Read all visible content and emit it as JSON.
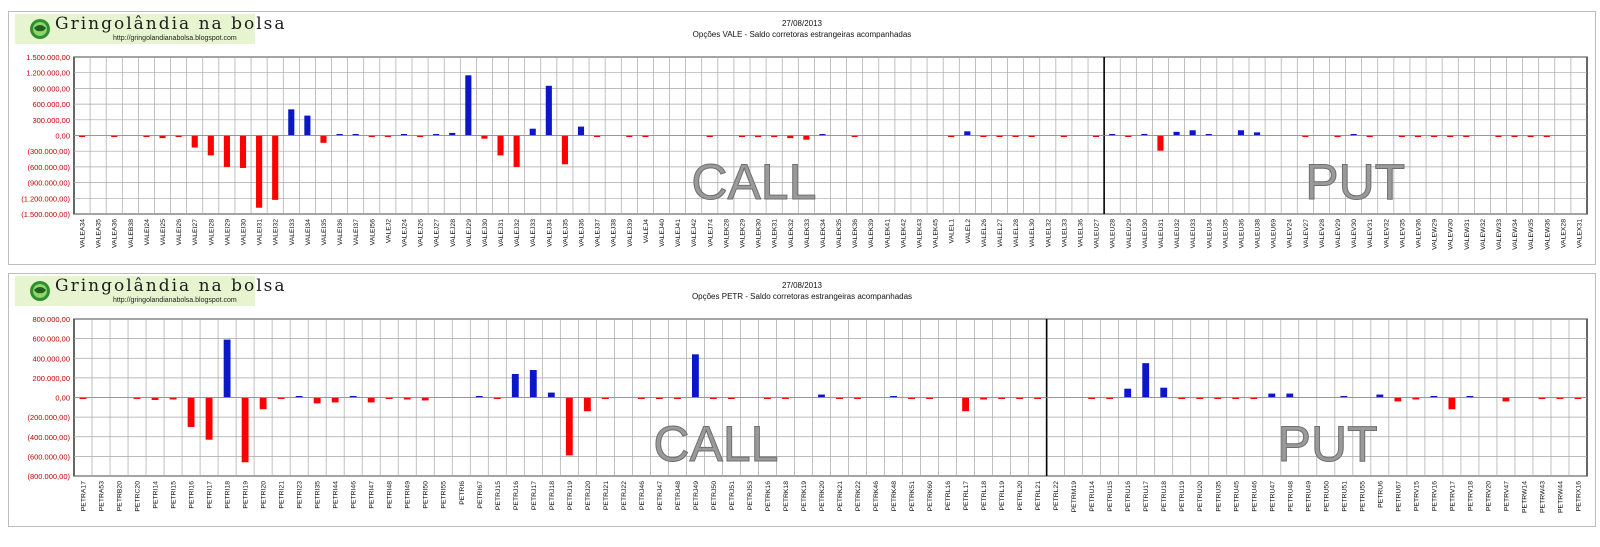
{
  "panels": [
    {
      "logo": {
        "name": "Gringolândia na bolsa",
        "url": "http://gringolandianabolsa.blogspot.com"
      },
      "date": "27/08/2013",
      "subtitle": "Opções VALE - Saldo corretoras estrangeiras acompanhadas",
      "watermark_call": "CALL",
      "watermark_put": "PUT"
    },
    {
      "logo": {
        "name": "Gringolândia na bolsa",
        "url": "http://gringolandianabolsa.blogspot.com"
      },
      "date": "27/08/2013",
      "subtitle": "Opções PETR - Saldo corretoras estrangeiras acompanhadas",
      "watermark_call": "CALL",
      "watermark_put": "PUT"
    }
  ],
  "colors": {
    "positive": "#0b17c9",
    "negative": "#ff0000",
    "axis_labels": "#c00000",
    "grid": "#a6a6a6"
  },
  "chart_data": [
    {
      "type": "bar",
      "title": "Opções VALE - Saldo corretoras estrangeiras acompanhadas",
      "ylim": [
        -1500000,
        1500000
      ],
      "yticks": [
        1500000,
        1200000,
        900000,
        600000,
        300000,
        0,
        -300000,
        -600000,
        -900000,
        -1200000,
        -1500000
      ],
      "ytick_labels": [
        "1.500.000,00",
        "1.200.000,00",
        "900.000,00",
        "600.000,00",
        "300.000,00",
        "0,00",
        "(300.000,00)",
        "(600.000,00)",
        "(900.000,00)",
        "(1.200.000,00)",
        "(1.500.000,00)"
      ],
      "grid": true,
      "divider_after_index": 64,
      "categories": [
        "VALEA34",
        "VALEA35",
        "VALEA36",
        "VALEB38",
        "VALEI24",
        "VALEI25",
        "VALEI26",
        "VALEI27",
        "VALEI28",
        "VALEI29",
        "VALEI30",
        "VALEI31",
        "VALEI32",
        "VALEI33",
        "VALEI34",
        "VALEI35",
        "VALEI36",
        "VALEI37",
        "VALEI56",
        "VALEJ2",
        "VALEJ24",
        "VALEJ26",
        "VALEJ27",
        "VALEJ28",
        "VALEJ29",
        "VALEJ30",
        "VALEJ31",
        "VALEJ32",
        "VALEJ33",
        "VALEJ34",
        "VALEJ35",
        "VALEJ36",
        "VALEJ37",
        "VALEJ38",
        "VALEJ39",
        "VALEJ4",
        "VALEJ40",
        "VALEJ41",
        "VALEJ42",
        "VALEJ74",
        "VALEK28",
        "VALEK29",
        "VALEK30",
        "VALEK31",
        "VALEK32",
        "VALEK33",
        "VALEK34",
        "VALEK35",
        "VALEK36",
        "VALEK39",
        "VALEK41",
        "VALEK42",
        "VALEK43",
        "VALEK45",
        "VALEL1",
        "VALEL2",
        "VALEL26",
        "VALEL27",
        "VALEL28",
        "VALEL30",
        "VALEL32",
        "VALEL33",
        "VALEL36",
        "VALEU27",
        "VALEU28",
        "VALEU29",
        "VALEU30",
        "VALEU31",
        "VALEU32",
        "VALEU33",
        "VALEU34",
        "VALEU35",
        "VALEU36",
        "VALEU38",
        "VALEU69",
        "VALEV24",
        "VALEV27",
        "VALEV28",
        "VALEV29",
        "VALEV30",
        "VALEV31",
        "VALEV32",
        "VALEV35",
        "VALEV36",
        "VALEW29",
        "VALEW30",
        "VALEW31",
        "VALEW32",
        "VALEW33",
        "VALEW34",
        "VALEW35",
        "VALEW36",
        "VALEX28",
        "VALEX31"
      ],
      "values": [
        -10000,
        0,
        -10000,
        0,
        -10000,
        -50000,
        -10000,
        -230000,
        -380000,
        -600000,
        -620000,
        -1380000,
        -1230000,
        500000,
        380000,
        -140000,
        10000,
        10000,
        -10000,
        -20000,
        10000,
        -10000,
        20000,
        50000,
        1150000,
        -60000,
        -380000,
        -600000,
        130000,
        950000,
        -550000,
        170000,
        -10000,
        0,
        -10000,
        -10000,
        0,
        0,
        0,
        -10000,
        0,
        -10000,
        -30000,
        -30000,
        -50000,
        -80000,
        10000,
        0,
        -10000,
        0,
        0,
        0,
        0,
        0,
        -30000,
        80000,
        -20000,
        -20000,
        -10000,
        -10000,
        0,
        -10000,
        0,
        -10000,
        10000,
        -20000,
        30000,
        -290000,
        70000,
        100000,
        10000,
        0,
        100000,
        60000,
        0,
        0,
        -10000,
        0,
        -30000,
        10000,
        -10000,
        0,
        -10000,
        -10000,
        -10000,
        -10000,
        -10000,
        0,
        -10000,
        -10000,
        -10000,
        -10000,
        0,
        0
      ]
    },
    {
      "type": "bar",
      "title": "Opções PETR - Saldo corretoras estrangeiras acompanhadas",
      "ylim": [
        -800000,
        800000
      ],
      "yticks": [
        800000,
        600000,
        400000,
        200000,
        0,
        -200000,
        -400000,
        -600000,
        -800000
      ],
      "ytick_labels": [
        "800.000,00",
        "600.000,00",
        "400.000,00",
        "200.000,00",
        "0,00",
        "(200.000,00)",
        "(400.000,00)",
        "(600.000,00)",
        "(800.000,00)"
      ],
      "grid": true,
      "divider_after_index": 54,
      "categories": [
        "PETRA17",
        "PETRA53",
        "PETRB20",
        "PETRC20",
        "PETRI14",
        "PETRI15",
        "PETRI16",
        "PETRI17",
        "PETRI18",
        "PETRI19",
        "PETRI20",
        "PETRI21",
        "PETRI23",
        "PETRI35",
        "PETRI44",
        "PETRI46",
        "PETRI47",
        "PETRI48",
        "PETRI49",
        "PETRI50",
        "PETRI55",
        "PETRI6",
        "PETRI67",
        "PETRJ15",
        "PETRJ16",
        "PETRJ17",
        "PETRJ18",
        "PETRJ19",
        "PETRJ20",
        "PETRJ21",
        "PETRJ22",
        "PETRJ46",
        "PETRJ47",
        "PETRJ48",
        "PETRJ49",
        "PETRJ50",
        "PETRJ51",
        "PETRJ53",
        "PETRK16",
        "PETRK18",
        "PETRK19",
        "PETRK20",
        "PETRK21",
        "PETRK22",
        "PETRK46",
        "PETRK48",
        "PETRK51",
        "PETRK60",
        "PETRL16",
        "PETRL17",
        "PETRL18",
        "PETRL19",
        "PETRL20",
        "PETRL21",
        "PETRL22",
        "PETRM19",
        "PETRU14",
        "PETRU15",
        "PETRU16",
        "PETRU17",
        "PETRU18",
        "PETRU19",
        "PETRU20",
        "PETRU35",
        "PETRU45",
        "PETRU46",
        "PETRU47",
        "PETRU48",
        "PETRU49",
        "PETRU50",
        "PETRU51",
        "PETRU55",
        "PETRU6",
        "PETRU67",
        "PETRV15",
        "PETRV16",
        "PETRV17",
        "PETRV18",
        "PETRV20",
        "PETRV47",
        "PETRW14",
        "PETRW43",
        "PETRW44",
        "PETRX16"
      ],
      "values": [
        -5000,
        0,
        0,
        -5000,
        -25000,
        -20000,
        -300000,
        -430000,
        590000,
        -660000,
        -120000,
        -5000,
        10000,
        -60000,
        -50000,
        15000,
        -50000,
        -5000,
        -20000,
        -30000,
        0,
        0,
        15000,
        -5000,
        240000,
        280000,
        50000,
        -590000,
        -140000,
        -5000,
        0,
        -5000,
        -5000,
        -5000,
        440000,
        -5000,
        -5000,
        0,
        -5000,
        -5000,
        0,
        30000,
        -15000,
        -5000,
        0,
        10000,
        -5000,
        -5000,
        0,
        -140000,
        -20000,
        -5000,
        -5000,
        -5000,
        0,
        0,
        -5000,
        -5000,
        90000,
        350000,
        100000,
        -5000,
        -5000,
        -5000,
        -5000,
        -5000,
        40000,
        40000,
        0,
        0,
        10000,
        0,
        30000,
        -40000,
        -20000,
        10000,
        -120000,
        10000,
        0,
        -40000,
        0,
        -5000,
        -5000,
        -5000
      ]
    }
  ]
}
